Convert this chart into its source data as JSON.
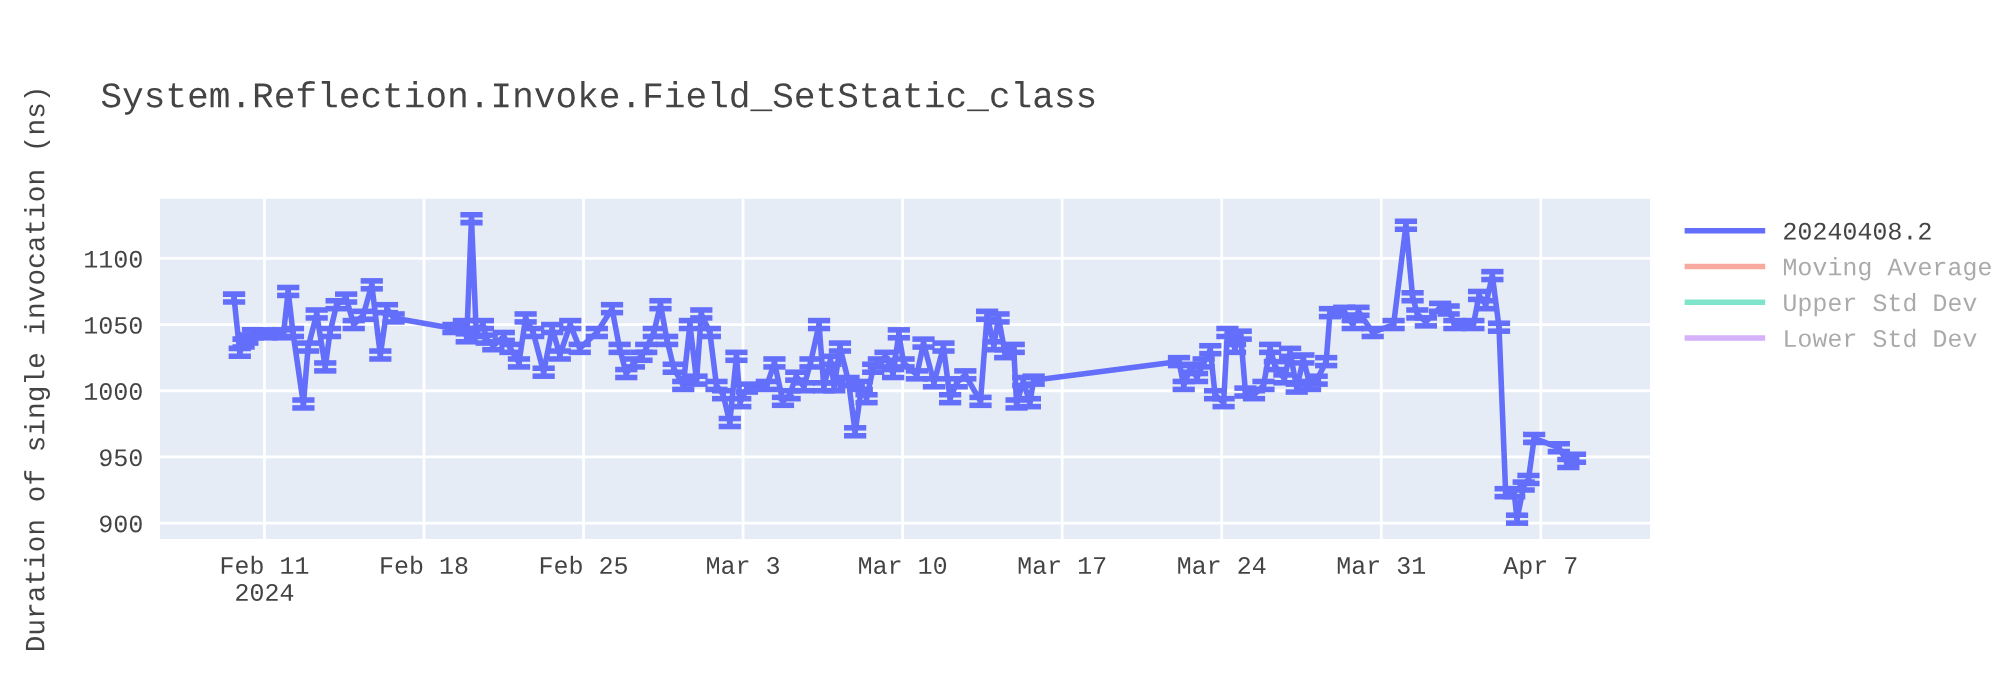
{
  "chart_data": {
    "type": "line",
    "title": "System.Reflection.Invoke.Field_SetStatic_class",
    "ylabel": "Duration of single invocation (ns)",
    "x": [
      "2024-02-09T16:00",
      "2024-02-09T22:00",
      "2024-02-10T02:00",
      "2024-02-10T06:00",
      "2024-02-10T12:00",
      "2024-02-11T02:00",
      "2024-02-11T20:00",
      "2024-02-12T01:00",
      "2024-02-12T06:00",
      "2024-02-12T17:00",
      "2024-02-12T22:00",
      "2024-02-13T07:00",
      "2024-02-13T16:00",
      "2024-02-13T21:00",
      "2024-02-14T04:00",
      "2024-02-14T14:00",
      "2024-02-14T22:00",
      "2024-02-15T08:00",
      "2024-02-15T17:00",
      "2024-02-16T02:00",
      "2024-02-16T09:00",
      "2024-02-16T16:00",
      "2024-02-19T07:00",
      "2024-02-19T18:00",
      "2024-02-19T21:00",
      "2024-02-20T02:00",
      "2024-02-20T07:00",
      "2024-02-20T14:00",
      "2024-02-20T18:00",
      "2024-02-21T01:00",
      "2024-02-21T12:00",
      "2024-02-21T19:00",
      "2024-02-22T04:00",
      "2024-02-22T11:00",
      "2024-02-22T19:00",
      "2024-02-23T06:00",
      "2024-02-23T15:00",
      "2024-02-23T23:00",
      "2024-02-24T10:00",
      "2024-02-24T20:00",
      "2024-02-25T14:00",
      "2024-02-26T06:00",
      "2024-02-26T14:00",
      "2024-02-26T21:00",
      "2024-02-27T05:00",
      "2024-02-27T13:00",
      "2024-02-27T18:00",
      "2024-02-28T02:00",
      "2024-02-28T09:00",
      "2024-02-28T16:00",
      "2024-02-28T23:00",
      "2024-02-29T09:00",
      "2024-02-29T16:00",
      "2024-02-29T23:00",
      "2024-03-01T04:00",
      "2024-03-01T13:00",
      "2024-03-01T20:00",
      "2024-03-02T03:00",
      "2024-03-02T10:00",
      "2024-03-02T17:00",
      "2024-03-02T21:00",
      "2024-03-03T04:00",
      "2024-03-04T01:00",
      "2024-03-04T09:00",
      "2024-03-04T18:00",
      "2024-03-05T01:00",
      "2024-03-05T08:00",
      "2024-03-05T16:00",
      "2024-03-05T23:00",
      "2024-03-06T08:00",
      "2024-03-06T13:00",
      "2024-03-06T20:00",
      "2024-03-07T00:00",
      "2024-03-07T06:00",
      "2024-03-07T15:00",
      "2024-03-07T22:00",
      "2024-03-08T05:00",
      "2024-03-08T10:00",
      "2024-03-08T17:00",
      "2024-03-08T23:00",
      "2024-03-09T06:00",
      "2024-03-09T14:00",
      "2024-03-09T20:00",
      "2024-03-10T01:00",
      "2024-03-10T15:00",
      "2024-03-10T22:00",
      "2024-03-11T09:00",
      "2024-03-11T19:00",
      "2024-03-12T02:00",
      "2024-03-12T09:00",
      "2024-03-12T18:00",
      "2024-03-13T10:00",
      "2024-03-13T17:00",
      "2024-03-14T00:00",
      "2024-03-14T05:00",
      "2024-03-14T12:00",
      "2024-03-14T21:00",
      "2024-03-15T00:00",
      "2024-03-15T07:00",
      "2024-03-15T14:00",
      "2024-03-15T18:00",
      "2024-03-22T03:00",
      "2024-03-22T08:00",
      "2024-03-22T15:00",
      "2024-03-22T22:00",
      "2024-03-23T05:00",
      "2024-03-23T12:00",
      "2024-03-23T17:00",
      "2024-03-24T02:00",
      "2024-03-24T06:00",
      "2024-03-24T14:00",
      "2024-03-24T20:00",
      "2024-03-25T01:00",
      "2024-03-25T10:00",
      "2024-03-25T20:00",
      "2024-03-26T03:00",
      "2024-03-26T08:00",
      "2024-03-26T18:00",
      "2024-03-27T00:00",
      "2024-03-27T07:00",
      "2024-03-27T14:00",
      "2024-03-27T21:00",
      "2024-03-28T04:00",
      "2024-03-28T14:00",
      "2024-03-28T18:00",
      "2024-03-29T09:00",
      "2024-03-29T18:00",
      "2024-03-30T00:00",
      "2024-03-30T15:00",
      "2024-03-31T13:00",
      "2024-04-01T02:00",
      "2024-04-01T09:00",
      "2024-04-01T14:00",
      "2024-04-01T23:00",
      "2024-04-02T14:00",
      "2024-04-02T23:00",
      "2024-04-03T05:00",
      "2024-04-04T01:00",
      "2024-04-04T07:00",
      "2024-04-04T14:00",
      "2024-04-04T21:00",
      "2024-04-05T04:00",
      "2024-04-05T11:00",
      "2024-04-05T20:00",
      "2024-04-05T23:00",
      "2024-04-06T06:00",
      "2024-04-06T11:00",
      "2024-04-06T17:00",
      "2024-04-07T19:00",
      "2024-04-08T05:00",
      "2024-04-08T12:00"
    ],
    "series": [
      {
        "name": "20240408.2",
        "color": "#636efa",
        "values": [
          1070,
          1029,
          1036,
          1039,
          1043,
          1043,
          1043,
          1075,
          1044,
          990,
          1033,
          1058,
          1018,
          1044,
          1065,
          1070,
          1050,
          1057,
          1080,
          1027,
          1062,
          1055,
          1047,
          1050,
          1040,
          1130,
          1044,
          1050,
          1039,
          1034,
          1041,
          1032,
          1021,
          1055,
          1044,
          1014,
          1047,
          1027,
          1050,
          1032,
          1044,
          1062,
          1032,
          1013,
          1021,
          1026,
          1032,
          1044,
          1065,
          1038,
          1017,
          1004,
          1050,
          1008,
          1058,
          1044,
          1004,
          997,
          976,
          1026,
          991,
          1002,
          1004,
          1021,
          992,
          997,
          1011,
          1003,
          1021,
          1050,
          1003,
          1023,
          1003,
          1033,
          1007,
          969,
          1004,
          994,
          1017,
          1021,
          1026,
          1013,
          1043,
          1021,
          1012,
          1036,
          1006,
          1033,
          994,
          1006,
          1012,
          992,
          1057,
          1034,
          1055,
          1028,
          1032,
          990,
          1007,
          991,
          1008,
          1022,
          1004,
          1017,
          1010,
          1021,
          1031,
          997,
          991,
          1044,
          1032,
          1042,
          999,
          997,
          1004,
          1032,
          1019,
          1009,
          1029,
          1002,
          1024,
          1004,
          1008,
          1022,
          1059,
          1060,
          1050,
          1060,
          1044,
          1050,
          1125,
          1071,
          1058,
          1052,
          1063,
          1061,
          1050,
          1050,
          1072,
          1065,
          1087,
          1048,
          923,
          923,
          903,
          928,
          933,
          964,
          957,
          945,
          949
        ],
        "errors": [
          3,
          3,
          3,
          3,
          3,
          3,
          3,
          3,
          3,
          3,
          3,
          3,
          3,
          3,
          3,
          3,
          3,
          3,
          3,
          3,
          3,
          3,
          3,
          3,
          3,
          3,
          3,
          3,
          3,
          3,
          3,
          3,
          3,
          3,
          3,
          3,
          3,
          3,
          3,
          3,
          3,
          3,
          3,
          3,
          3,
          3,
          3,
          3,
          3,
          3,
          3,
          3,
          3,
          3,
          3,
          3,
          3,
          3,
          3,
          3,
          3,
          3,
          3,
          3,
          3,
          3,
          3,
          3,
          3,
          3,
          3,
          3,
          3,
          3,
          3,
          3,
          3,
          3,
          3,
          3,
          3,
          3,
          3,
          3,
          3,
          3,
          3,
          3,
          3,
          3,
          3,
          3,
          3,
          3,
          3,
          3,
          3,
          3,
          3,
          3,
          3,
          3,
          3,
          3,
          3,
          3,
          3,
          3,
          3,
          3,
          3,
          3,
          3,
          3,
          3,
          3,
          3,
          3,
          3,
          3,
          3,
          3,
          3,
          3,
          3,
          3,
          3,
          3,
          3,
          3,
          3,
          3,
          3,
          3,
          3,
          3,
          3,
          3,
          3,
          3,
          3,
          3,
          3,
          3,
          3,
          3,
          3,
          3,
          3,
          3,
          3
        ]
      },
      {
        "name": "Moving Average",
        "color": "#ef553b",
        "values": [
          null,
          null,
          null,
          null,
          null,
          null,
          null,
          null,
          null,
          null,
          null,
          null,
          null,
          null,
          null,
          null,
          null,
          null,
          null,
          null,
          null,
          null,
          null,
          null,
          null,
          null,
          null,
          null,
          null,
          null,
          null,
          null,
          null,
          null,
          null,
          null,
          null,
          null,
          null,
          null,
          null,
          null,
          null,
          null,
          null,
          null,
          null,
          null,
          null,
          null,
          null,
          null,
          null,
          null,
          null,
          null,
          null,
          null,
          null,
          null,
          null,
          null,
          null,
          null,
          null,
          null,
          null,
          null,
          null,
          null,
          null,
          null,
          null,
          null,
          null,
          null,
          null,
          null,
          null,
          null,
          null,
          null,
          null,
          null,
          null,
          null,
          null,
          null,
          null,
          null,
          null,
          null,
          null,
          null,
          null,
          null,
          null,
          null,
          null,
          null,
          null,
          null,
          null,
          null,
          null,
          null,
          null,
          null,
          null,
          null,
          null,
          null,
          null,
          null,
          null,
          null,
          null,
          null,
          null,
          null,
          null,
          null,
          null,
          null,
          null,
          null,
          null,
          null,
          null,
          null,
          null,
          null,
          null,
          null,
          null,
          null,
          null,
          null,
          null,
          null,
          null,
          null,
          null,
          null,
          null,
          null,
          null,
          null,
          null,
          null,
          null
        ]
      },
      {
        "name": "Upper Std Dev",
        "color": "#00cc96",
        "values": [
          null,
          null,
          null,
          null,
          null,
          null,
          null,
          null,
          null,
          null,
          null,
          null,
          null,
          null,
          null,
          null,
          null,
          null,
          null,
          null,
          null,
          null,
          null,
          null,
          null,
          null,
          null,
          null,
          null,
          null,
          null,
          null,
          null,
          null,
          null,
          null,
          null,
          null,
          null,
          null,
          null,
          null,
          null,
          null,
          null,
          null,
          null,
          null,
          null,
          null,
          null,
          null,
          null,
          null,
          null,
          null,
          null,
          null,
          null,
          null,
          null,
          null,
          null,
          null,
          null,
          null,
          null,
          null,
          null,
          null,
          null,
          null,
          null,
          null,
          null,
          null,
          null,
          null,
          null,
          null,
          null,
          null,
          null,
          null,
          null,
          null,
          null,
          null,
          null,
          null,
          null,
          null,
          null,
          null,
          null,
          null,
          null,
          null,
          null,
          null,
          null,
          null,
          null,
          null,
          null,
          null,
          null,
          null,
          null,
          null,
          null,
          null,
          null,
          null,
          null,
          null,
          null,
          null,
          null,
          null,
          null,
          null,
          null,
          null,
          null,
          null,
          null,
          null,
          null,
          null,
          null,
          null,
          null,
          null,
          null,
          null,
          null,
          null,
          null,
          null,
          null,
          null,
          null,
          null,
          null,
          null,
          null,
          null,
          null,
          null,
          null
        ]
      },
      {
        "name": "Lower Std Dev",
        "color": "#ab63fa",
        "values": [
          null,
          null,
          null,
          null,
          null,
          null,
          null,
          null,
          null,
          null,
          null,
          null,
          null,
          null,
          null,
          null,
          null,
          null,
          null,
          null,
          null,
          null,
          null,
          null,
          null,
          null,
          null,
          null,
          null,
          null,
          null,
          null,
          null,
          null,
          null,
          null,
          null,
          null,
          null,
          null,
          null,
          null,
          null,
          null,
          null,
          null,
          null,
          null,
          null,
          null,
          null,
          null,
          null,
          null,
          null,
          null,
          null,
          null,
          null,
          null,
          null,
          null,
          null,
          null,
          null,
          null,
          null,
          null,
          null,
          null,
          null,
          null,
          null,
          null,
          null,
          null,
          null,
          null,
          null,
          null,
          null,
          null,
          null,
          null,
          null,
          null,
          null,
          null,
          null,
          null,
          null,
          null,
          null,
          null,
          null,
          null,
          null,
          null,
          null,
          null,
          null,
          null,
          null,
          null,
          null,
          null,
          null,
          null,
          null,
          null,
          null,
          null,
          null,
          null,
          null,
          null,
          null,
          null,
          null,
          null,
          null,
          null,
          null,
          null,
          null,
          null,
          null,
          null,
          null,
          null,
          null,
          null,
          null,
          null,
          null,
          null,
          null,
          null,
          null,
          null,
          null,
          null,
          null,
          null,
          null,
          null,
          null,
          null,
          null,
          null,
          null
        ]
      }
    ],
    "xlim": [
      "2024-02-06T10:00",
      "2024-04-11T19:00"
    ],
    "xticks": [
      {
        "value": "2024-02-11",
        "label": "Feb 11\n2024"
      },
      {
        "value": "2024-02-18",
        "label": "Feb 18"
      },
      {
        "value": "2024-02-25",
        "label": "Feb 25"
      },
      {
        "value": "2024-03-03",
        "label": "Mar 3"
      },
      {
        "value": "2024-03-10",
        "label": "Mar 10"
      },
      {
        "value": "2024-03-17",
        "label": "Mar 17"
      },
      {
        "value": "2024-03-24",
        "label": "Mar 24"
      },
      {
        "value": "2024-03-31",
        "label": "Mar 31"
      },
      {
        "value": "2024-04-07",
        "label": "Apr 7"
      }
    ],
    "ylim": [
      888,
      1145
    ],
    "yticks": [
      900,
      950,
      1000,
      1050,
      1100
    ],
    "grid": true,
    "legend": "top right",
    "marker": "none",
    "line_style": "solid"
  }
}
